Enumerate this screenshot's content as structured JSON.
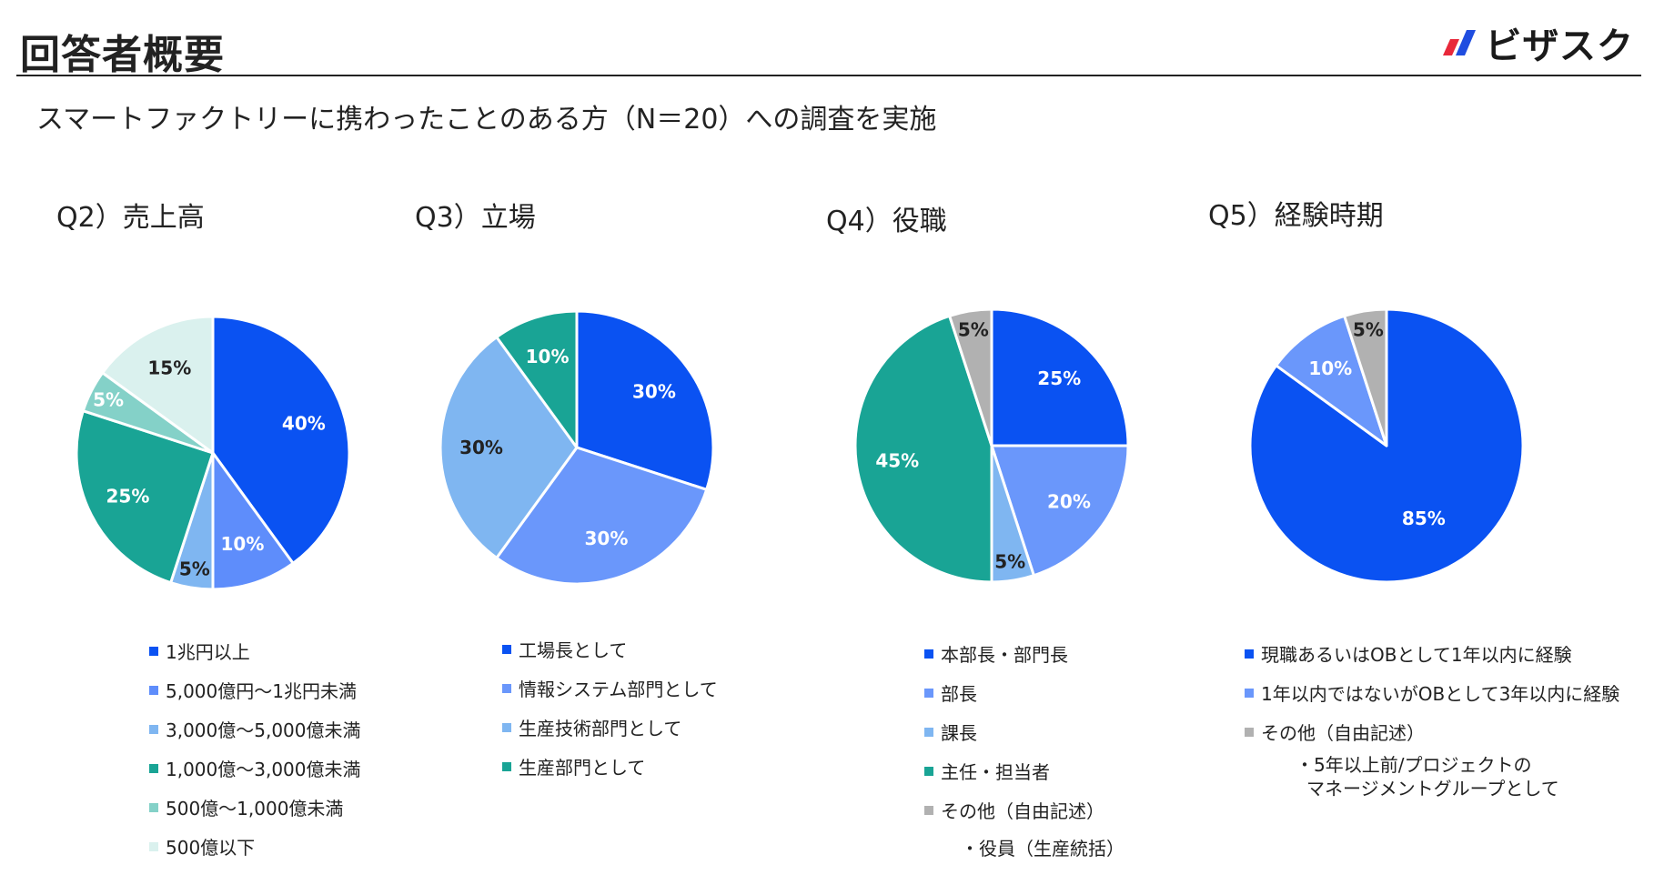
{
  "header": {
    "title": "回答者概要",
    "brand_name": "ビザスク",
    "subtitle": "スマートファクトリーに携わったことのある方（N＝20）への調査を実施"
  },
  "brand_colors": {
    "mark_blue": "#1f4de0",
    "mark_red": "#e8283a"
  },
  "chart_data": [
    {
      "type": "pie",
      "title": "Q2）売上高",
      "categories": [
        "1兆円以上",
        "5,000億円〜1兆円未満",
        "3,000億〜5,000億未満",
        "1,000億〜3,000億未満",
        "500億〜1,000億未満",
        "500億以下"
      ],
      "values": [
        40,
        10,
        5,
        25,
        5,
        15
      ],
      "labels": [
        "40%",
        "10%",
        "5%",
        "25%",
        "5%",
        "15%"
      ],
      "colors": [
        "#0a52f2",
        "#5e8dfb",
        "#7fb6f1",
        "#19a495",
        "#84d1c8",
        "#daf1ee"
      ],
      "label_colors": [
        "#ffffff",
        "#ffffff",
        "#222222",
        "#ffffff",
        "#ffffff",
        "#222222"
      ],
      "notes": []
    },
    {
      "type": "pie",
      "title": "Q3）立場",
      "categories": [
        "工場長として",
        "情報システム部門として",
        "生産技術部門として",
        "生産部門として"
      ],
      "values": [
        30,
        30,
        30,
        10
      ],
      "labels": [
        "30%",
        "30%",
        "30%",
        "10%"
      ],
      "colors": [
        "#0a52f2",
        "#6a97fb",
        "#7fb6f1",
        "#19a495"
      ],
      "label_colors": [
        "#ffffff",
        "#ffffff",
        "#222222",
        "#ffffff"
      ],
      "notes": []
    },
    {
      "type": "pie",
      "title": "Q4）役職",
      "categories": [
        "本部長・部門長",
        "部長",
        "課長",
        "主任・担当者",
        "その他（自由記述）"
      ],
      "values": [
        25,
        20,
        5,
        45,
        5
      ],
      "labels": [
        "25%",
        "20%",
        "5%",
        "45%",
        "5%"
      ],
      "colors": [
        "#0a52f2",
        "#6a97fb",
        "#7fb6f1",
        "#19a495",
        "#b1b1b1"
      ],
      "label_colors": [
        "#ffffff",
        "#ffffff",
        "#222222",
        "#ffffff",
        "#222222"
      ],
      "notes": [
        "・役員（生産統括）"
      ]
    },
    {
      "type": "pie",
      "title": "Q5）経験時期",
      "categories": [
        "現職あるいはOBとして1年以内に経験",
        "1年以内ではないがOBとして3年以内に経験",
        "その他（自由記述）"
      ],
      "values": [
        85,
        10,
        5
      ],
      "labels": [
        "85%",
        "10%",
        "5%"
      ],
      "colors": [
        "#0a52f2",
        "#6a97fb",
        "#b1b1b1"
      ],
      "label_colors": [
        "#ffffff",
        "#ffffff",
        "#222222"
      ],
      "notes": [
        "・5年以上前/プロジェクトの",
        "マネージメントグループとして"
      ]
    }
  ]
}
